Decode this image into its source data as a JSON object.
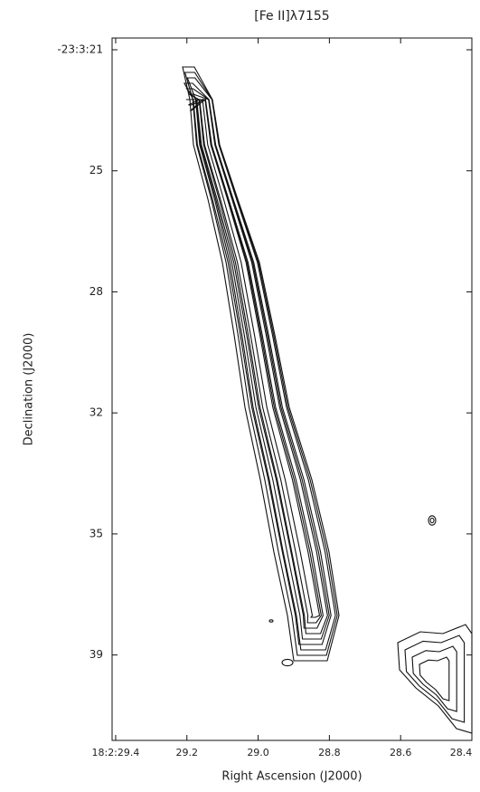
{
  "chart_data": {
    "type": "contour",
    "title": "[Fe II]λ7155",
    "xlabel": "Right Ascension (J2000)",
    "ylabel": "Declination (J2000)",
    "xlim": [
      29.41,
      28.4
    ],
    "ylim": [
      20.66,
      40.97
    ],
    "xticks": [
      {
        "value": 29.4,
        "label": "18:2:29.4"
      },
      {
        "value": 29.2,
        "label": "29.2"
      },
      {
        "value": 29.0,
        "label": "29.0"
      },
      {
        "value": 28.8,
        "label": "28.8"
      },
      {
        "value": 28.6,
        "label": "28.6"
      },
      {
        "value": 28.4,
        "label": "28.4"
      }
    ],
    "yticks": [
      {
        "value": 21.0,
        "label": "-23:3:21"
      },
      {
        "value": 24.5,
        "label": "25"
      },
      {
        "value": 28.0,
        "label": "28"
      },
      {
        "value": 31.5,
        "label": "32"
      },
      {
        "value": 35.0,
        "label": "35"
      },
      {
        "value": 38.5,
        "label": "39"
      }
    ],
    "color": "#111111"
  }
}
